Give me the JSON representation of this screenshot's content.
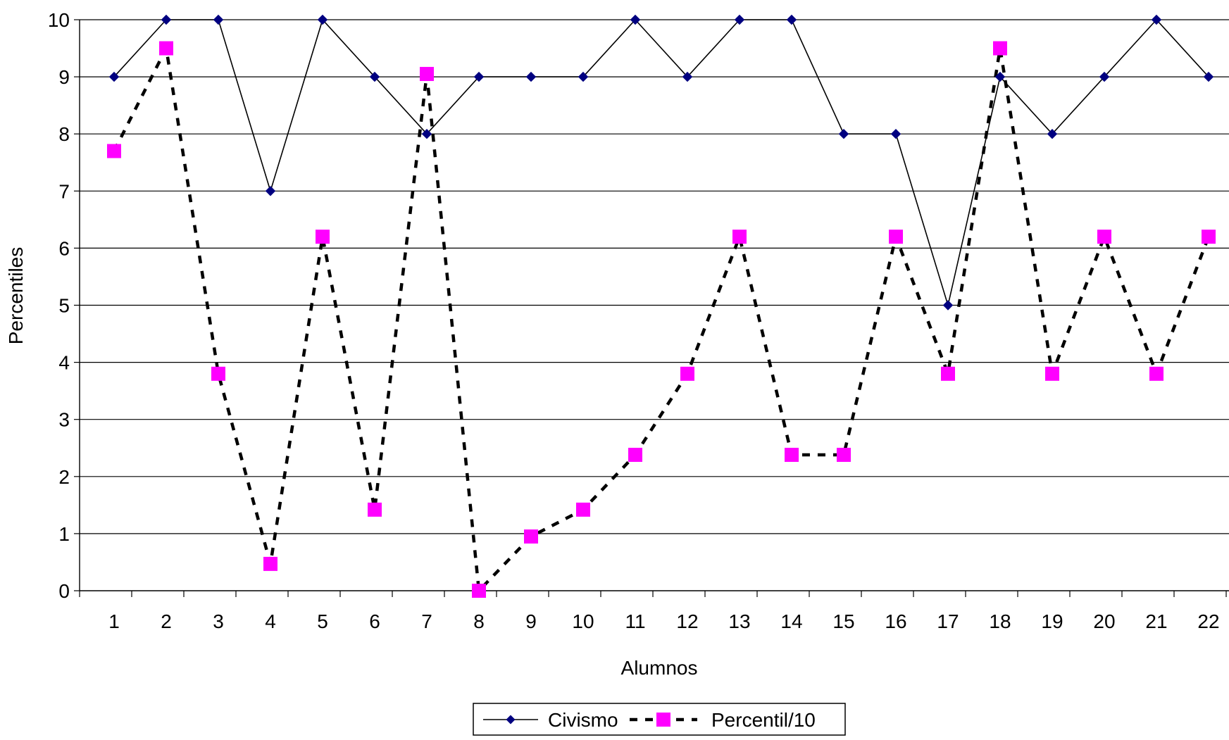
{
  "chart_data": {
    "type": "line",
    "title": "",
    "xlabel": "Alumnos",
    "ylabel": "Percentiles",
    "ylim": [
      0,
      10
    ],
    "yticks": [
      0,
      1,
      2,
      3,
      4,
      5,
      6,
      7,
      8,
      9,
      10
    ],
    "grid": "horizontal",
    "legend_position": "bottom",
    "categories": [
      "1",
      "2",
      "3",
      "4",
      "5",
      "6",
      "7",
      "8",
      "9",
      "10",
      "11",
      "12",
      "13",
      "14",
      "15",
      "16",
      "17",
      "18",
      "19",
      "20",
      "21",
      "22"
    ],
    "series": [
      {
        "name": "Civismo",
        "color": "#000080",
        "line_color": "#000000",
        "line_style": "solid",
        "marker": "diamond",
        "values": [
          9,
          10,
          10,
          7,
          10,
          9,
          8,
          9,
          9,
          9,
          10,
          9,
          10,
          10,
          8,
          8,
          5,
          9,
          8,
          9,
          10,
          9
        ]
      },
      {
        "name": "Percentil/10",
        "color": "#FF00FF",
        "line_color": "#000000",
        "line_style": "dashed",
        "marker": "square",
        "values": [
          7.7,
          9.5,
          3.8,
          0.47,
          6.2,
          1.42,
          9.05,
          0,
          0.95,
          1.42,
          2.38,
          3.8,
          6.2,
          2.38,
          2.38,
          6.2,
          3.8,
          9.5,
          3.8,
          6.2,
          3.8,
          6.2
        ]
      }
    ]
  }
}
